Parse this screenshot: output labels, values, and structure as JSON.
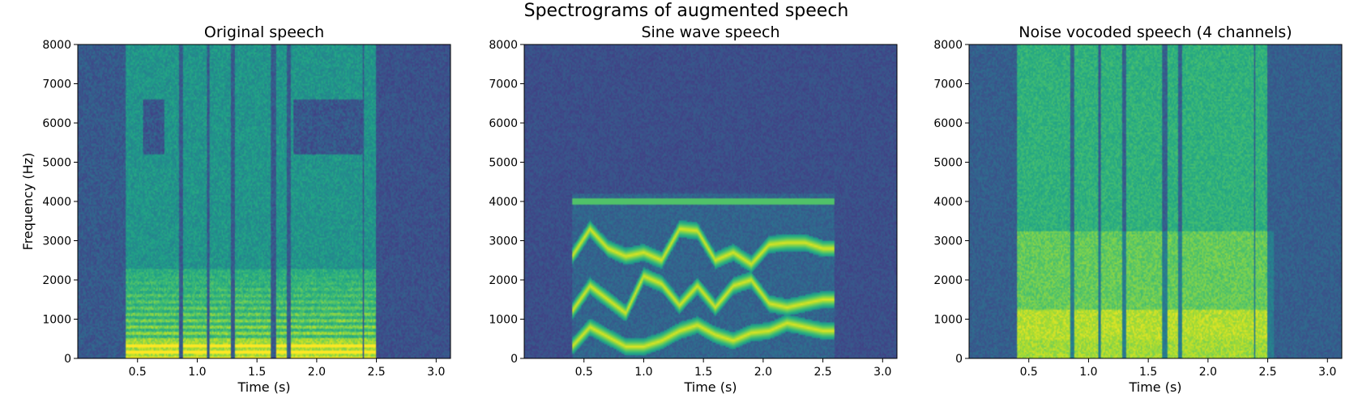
{
  "figure": {
    "suptitle": "Spectrograms of augmented speech"
  },
  "chart_data": [
    {
      "type": "heatmap",
      "title": "Original speech",
      "xlabel": "Time (s)",
      "ylabel": "Frequency (Hz)",
      "xlim": [
        0.0,
        3.12
      ],
      "ylim": [
        0,
        8000
      ],
      "xticks": [
        0.5,
        1.0,
        1.5,
        2.0,
        2.5,
        3.0
      ],
      "xtick_labels": [
        "0.5",
        "1.0",
        "1.5",
        "2.0",
        "2.5",
        "3.0"
      ],
      "yticks": [
        0,
        1000,
        2000,
        3000,
        4000,
        5000,
        6000,
        7000,
        8000
      ],
      "ytick_labels": [
        "0",
        "1000",
        "2000",
        "3000",
        "4000",
        "5000",
        "6000",
        "7000",
        "8000"
      ],
      "colormap": "viridis",
      "speech_segments": [
        [
          0.4,
          0.85
        ],
        [
          0.88,
          1.08
        ],
        [
          1.1,
          1.28
        ],
        [
          1.32,
          1.62
        ],
        [
          1.66,
          1.75
        ],
        [
          1.78,
          2.38
        ],
        [
          2.4,
          2.5
        ]
      ],
      "harmonic_band_hz": [
        0,
        2300
      ]
    },
    {
      "type": "heatmap",
      "title": "Sine wave speech",
      "xlabel": "Time (s)",
      "ylabel": "",
      "xlim": [
        0.0,
        3.12
      ],
      "ylim": [
        0,
        8000
      ],
      "xticks": [
        0.5,
        1.0,
        1.5,
        2.0,
        2.5,
        3.0
      ],
      "xtick_labels": [
        "0.5",
        "1.0",
        "1.5",
        "2.0",
        "2.5",
        "3.0"
      ],
      "yticks": [
        0,
        1000,
        2000,
        3000,
        4000,
        5000,
        6000,
        7000,
        8000
      ],
      "ytick_labels": [
        "0",
        "1000",
        "2000",
        "3000",
        "4000",
        "5000",
        "6000",
        "7000",
        "8000"
      ],
      "colormap": "viridis",
      "ceiling_line_hz": 4000,
      "active_span_s": [
        0.4,
        2.6
      ],
      "formant_tracks": [
        {
          "t": [
            0.4,
            0.55,
            0.7,
            0.85,
            1.0,
            1.15,
            1.3,
            1.45,
            1.6,
            1.75,
            1.9,
            2.05,
            2.2,
            2.35,
            2.5
          ],
          "f": [
            300,
            800,
            550,
            300,
            300,
            450,
            700,
            850,
            600,
            450,
            650,
            700,
            900,
            800,
            700
          ]
        },
        {
          "t": [
            0.4,
            0.55,
            0.7,
            0.85,
            1.0,
            1.15,
            1.3,
            1.45,
            1.6,
            1.75,
            1.9,
            2.05,
            2.2,
            2.35,
            2.5
          ],
          "f": [
            1200,
            1850,
            1500,
            1150,
            2100,
            1900,
            1350,
            1850,
            1300,
            1850,
            2000,
            1400,
            1300,
            1400,
            1500
          ]
        },
        {
          "t": [
            0.4,
            0.55,
            0.7,
            0.85,
            1.0,
            1.15,
            1.3,
            1.45,
            1.6,
            1.75,
            1.9,
            2.05,
            2.2,
            2.35,
            2.5
          ],
          "f": [
            2600,
            3300,
            2800,
            2600,
            2700,
            2500,
            3300,
            3250,
            2500,
            2700,
            2400,
            2900,
            2950,
            2950,
            2800
          ]
        }
      ]
    },
    {
      "type": "heatmap",
      "title": "Noise vocoded speech (4 channels)",
      "xlabel": "Time (s)",
      "ylabel": "",
      "xlim": [
        0.0,
        3.12
      ],
      "ylim": [
        0,
        8000
      ],
      "xticks": [
        0.5,
        1.0,
        1.5,
        2.0,
        2.5,
        3.0
      ],
      "xtick_labels": [
        "0.5",
        "1.0",
        "1.5",
        "2.0",
        "2.5",
        "3.0"
      ],
      "yticks": [
        0,
        1000,
        2000,
        3000,
        4000,
        5000,
        6000,
        7000,
        8000
      ],
      "ytick_labels": [
        "0",
        "1000",
        "2000",
        "3000",
        "4000",
        "5000",
        "6000",
        "7000",
        "8000"
      ],
      "colormap": "viridis",
      "channel_edges_hz": [
        0,
        500,
        1250,
        3250,
        8000
      ],
      "speech_segments": [
        [
          0.4,
          0.85
        ],
        [
          0.88,
          1.08
        ],
        [
          1.1,
          1.28
        ],
        [
          1.32,
          1.62
        ],
        [
          1.66,
          1.75
        ],
        [
          1.78,
          2.38
        ],
        [
          2.4,
          2.5
        ]
      ]
    }
  ]
}
